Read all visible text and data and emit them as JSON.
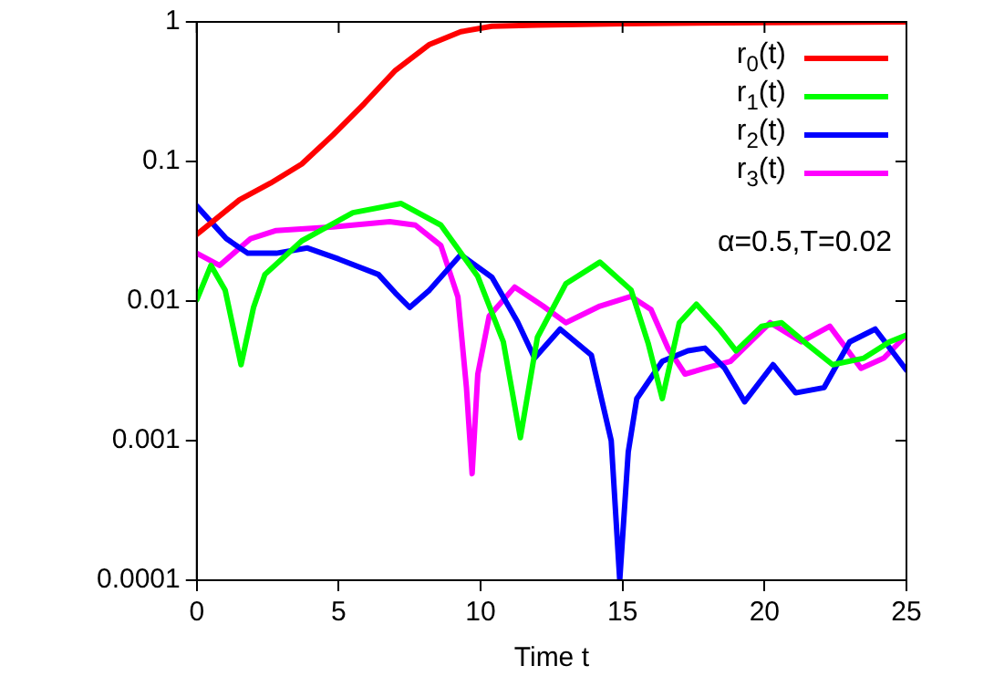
{
  "chart_data": {
    "type": "line",
    "xlabel": "Time t",
    "log": "y",
    "xlim": [
      0,
      25
    ],
    "ylim": [
      0.0001,
      1
    ],
    "xticks": [
      0,
      5,
      10,
      15,
      20,
      25
    ],
    "yticks": [
      0.0001,
      0.001,
      0.01,
      0.1,
      1
    ],
    "grid": false,
    "legend": "top right",
    "marker": "none",
    "line_style": "solid",
    "annotations": [
      "α=0.5,T=0.02"
    ],
    "series": [
      {
        "name": "r$_{0}$(t)",
        "color": "#ff0000",
        "x": [
          0,
          1.5,
          2.6,
          3.7,
          4.8,
          5.9,
          7,
          8.2,
          9.3,
          10.4,
          12,
          15,
          20,
          25
        ],
        "values": [
          0.03,
          0.053,
          0.07,
          0.096,
          0.155,
          0.26,
          0.45,
          0.69,
          0.85,
          0.93,
          0.95,
          0.97,
          0.99,
          1
        ]
      },
      {
        "name": "r$_{1}$(t)",
        "color": "#00ff00",
        "x": [
          0,
          0.5,
          1.0,
          1.56,
          2.0,
          2.4,
          3.7,
          5.5,
          7.2,
          8.6,
          9.9,
          10.8,
          11.4,
          12,
          13,
          14.2,
          15.3,
          15.9,
          16.4,
          17,
          17.6,
          18.4,
          19,
          19.9,
          20.6,
          21.5,
          22.4,
          23.5,
          24.4,
          25
        ],
        "values": [
          0.0102,
          0.018,
          0.012,
          0.0035,
          0.009,
          0.0155,
          0.027,
          0.043,
          0.05,
          0.035,
          0.015,
          0.0051,
          0.00105,
          0.0055,
          0.0133,
          0.019,
          0.012,
          0.005,
          0.002,
          0.007,
          0.0095,
          0.0063,
          0.0044,
          0.0066,
          0.007,
          0.0049,
          0.0035,
          0.0039,
          0.0051,
          0.0057
        ]
      },
      {
        "name": "r$_{2}$(t)",
        "color": "#0000ff",
        "x": [
          0,
          1.04,
          1.8,
          2.8,
          3.9,
          5,
          6.4,
          7,
          7.5,
          8.2,
          9.3,
          10.4,
          11.3,
          11.9,
          12.8,
          13.9,
          14.6,
          14.9,
          15.2,
          15.5,
          16.4,
          17.3,
          17.9,
          18.6,
          19.3,
          20.3,
          21.1,
          22.1,
          23,
          23.9,
          24.6,
          25
        ],
        "values": [
          0.048,
          0.028,
          0.022,
          0.022,
          0.024,
          0.02,
          0.0155,
          0.0114,
          0.009,
          0.012,
          0.0215,
          0.0148,
          0.0071,
          0.0039,
          0.0063,
          0.0041,
          0.001,
          0.0001,
          0.00083,
          0.002,
          0.0037,
          0.0044,
          0.0046,
          0.0033,
          0.0019,
          0.0035,
          0.0022,
          0.0024,
          0.0051,
          0.0063,
          0.0041,
          0.0032
        ]
      },
      {
        "name": "r$_{3}$(t)",
        "color": "#ff00ff",
        "x": [
          0,
          0.8,
          1.9,
          2.8,
          4.8,
          6.8,
          7.7,
          8.6,
          9.2,
          9.5,
          9.7,
          9.9,
          10.3,
          11.2,
          12.2,
          13,
          14.2,
          15.3,
          16,
          16.6,
          17.2,
          17.9,
          18.8,
          20.2,
          21.3,
          22.3,
          23.4,
          24.2,
          25
        ],
        "values": [
          0.022,
          0.018,
          0.028,
          0.032,
          0.034,
          0.037,
          0.035,
          0.025,
          0.0107,
          0.0024,
          0.00058,
          0.003,
          0.0078,
          0.0126,
          0.0092,
          0.007,
          0.0092,
          0.0108,
          0.0087,
          0.0046,
          0.003,
          0.0033,
          0.0037,
          0.007,
          0.0051,
          0.0066,
          0.0033,
          0.0039,
          0.0057
        ]
      }
    ]
  }
}
